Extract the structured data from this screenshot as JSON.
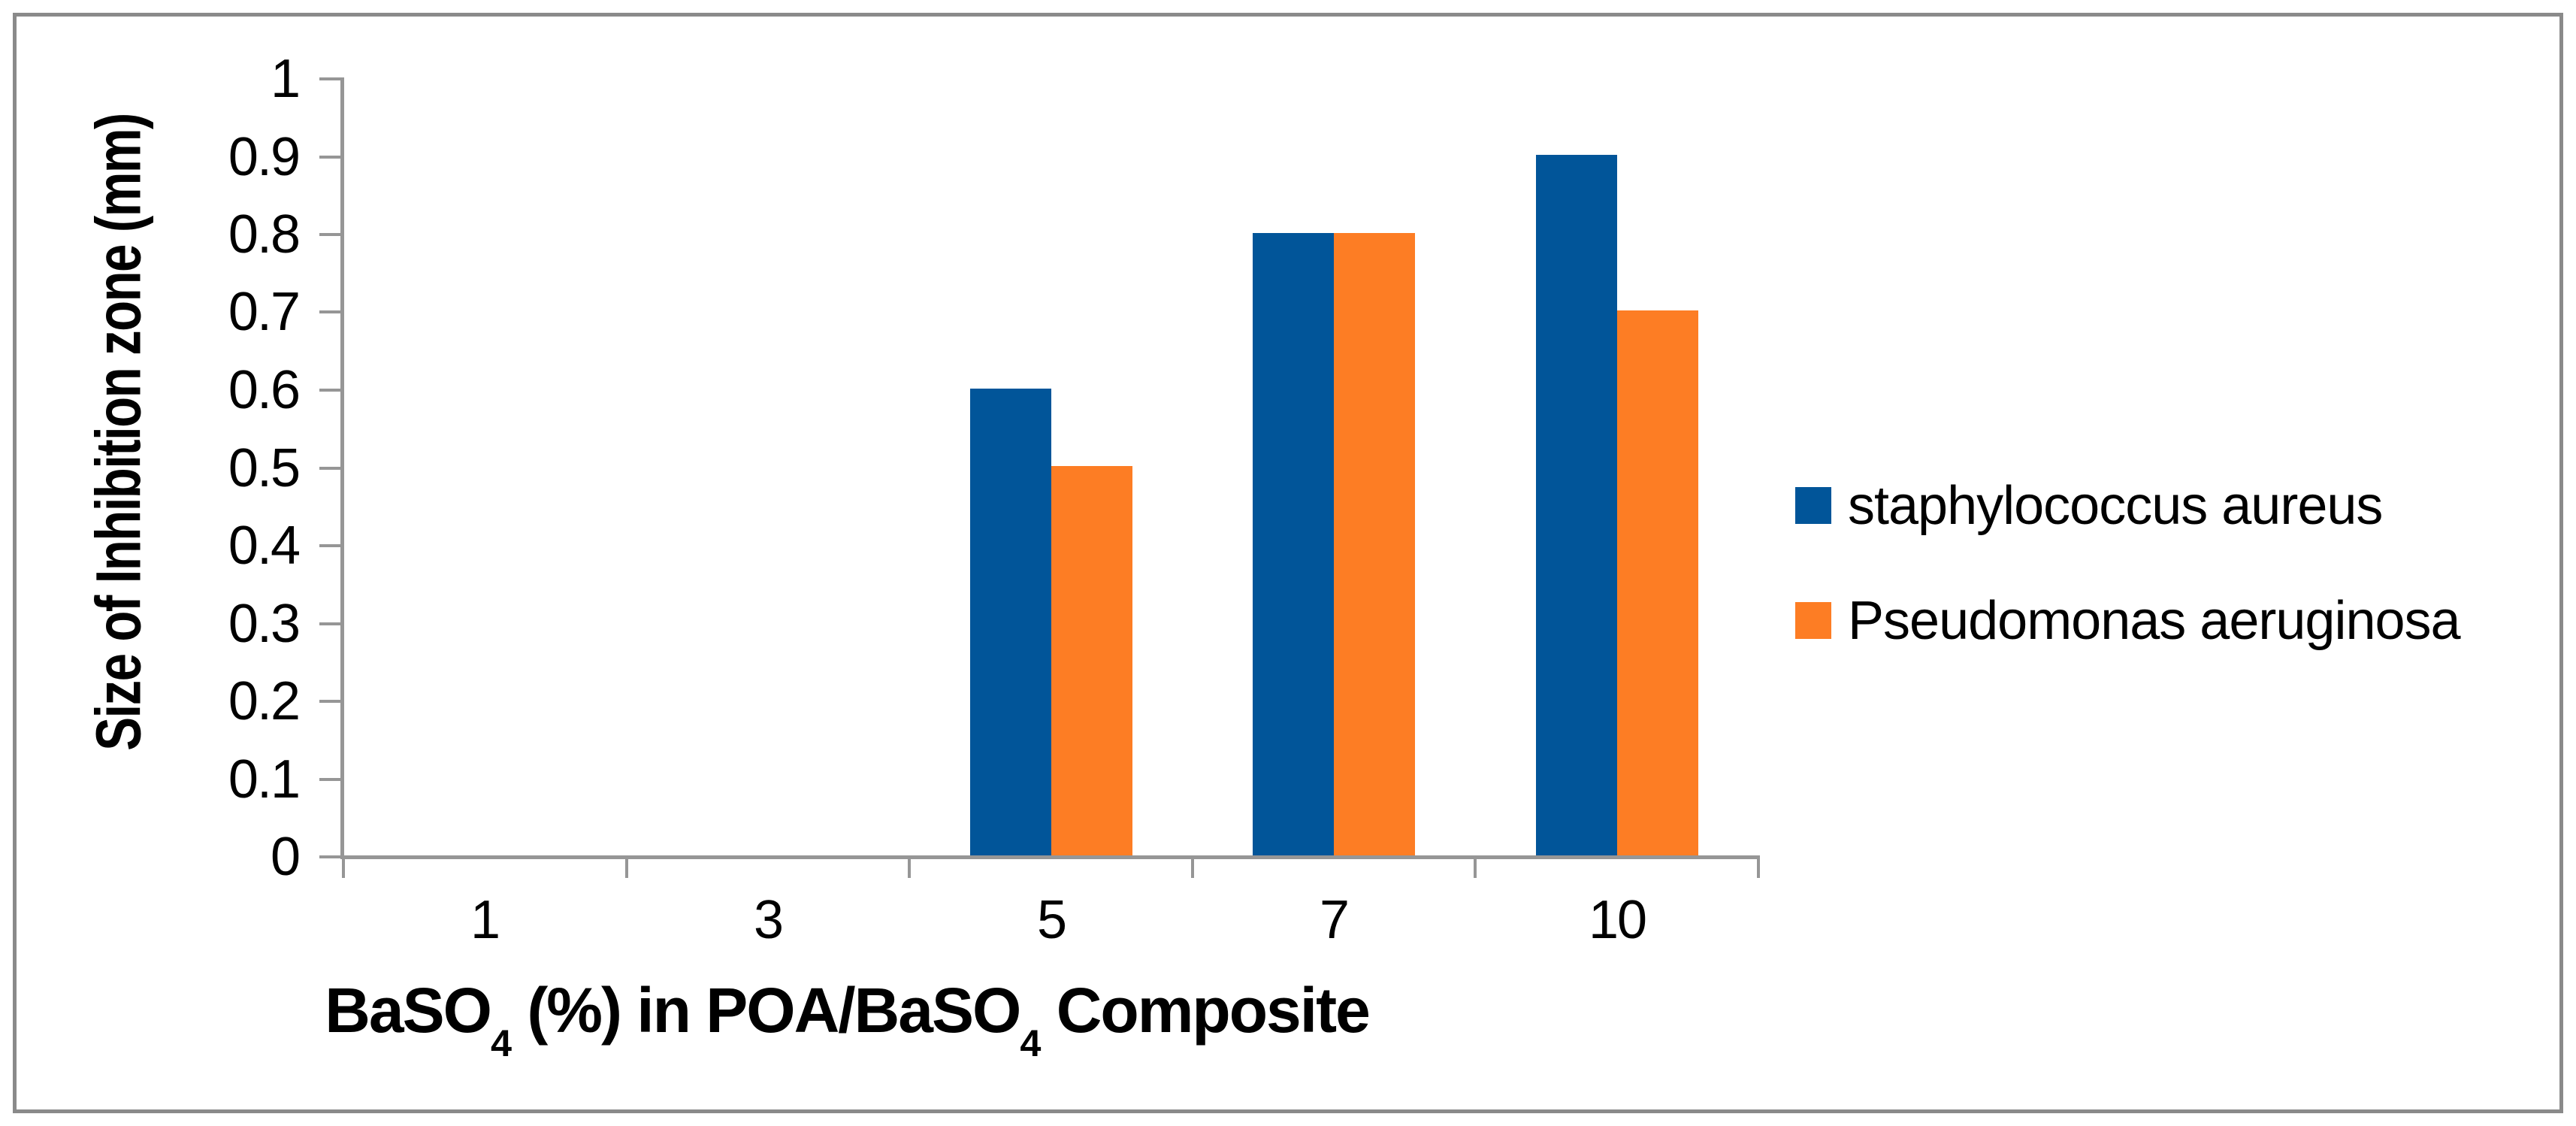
{
  "figure": {
    "background": "#FFFFFF",
    "border_color": "#8A8A8A",
    "axis_color": "#969696",
    "text_color": "#000000"
  },
  "chart_data": {
    "type": "bar",
    "title": "",
    "categories": [
      "1",
      "3",
      "5",
      "7",
      "10"
    ],
    "series": [
      {
        "name": "staphylococcus aureus",
        "color": "#015599",
        "values": [
          0,
          0,
          0.6,
          0.8,
          0.9
        ]
      },
      {
        "name": "Pseudomonas aeruginosa",
        "color": "#FD7D24",
        "values": [
          0,
          0,
          0.5,
          0.8,
          0.7
        ]
      }
    ],
    "xlabel": "BaSO4 (%) in POA/BaSO4 Composite",
    "xlabel_parts": [
      {
        "text": "BaSO",
        "subscript": false
      },
      {
        "text": "4",
        "subscript": true
      },
      {
        "text": " (%) in POA/BaSO",
        "subscript": false
      },
      {
        "text": "4",
        "subscript": true
      },
      {
        "text": " Composite",
        "subscript": false
      }
    ],
    "ylabel": "Size of Inhibition zone (mm)",
    "ylim": [
      0,
      1
    ],
    "ytick_step": 0.1,
    "yticks": [
      "0",
      "0.1",
      "0.2",
      "0.3",
      "0.4",
      "0.5",
      "0.6",
      "0.7",
      "0.8",
      "0.9",
      "1"
    ],
    "grid": false,
    "legend_position": "right-middle"
  }
}
